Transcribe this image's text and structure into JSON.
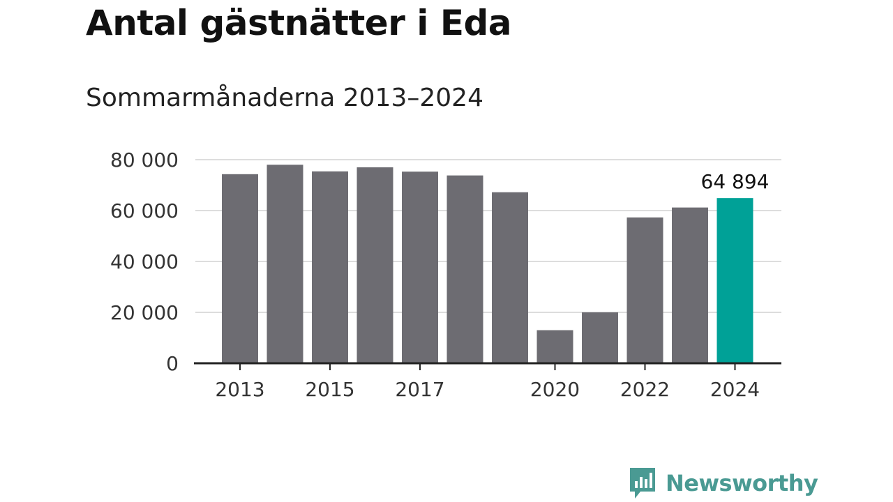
{
  "title": "Antal gästnätter i Eda",
  "subtitle": "Sommarmånaderna 2013–2024",
  "brand": {
    "name": "Newsworthy",
    "color": "#4a9a93",
    "icon": "newsworthy-logo-icon"
  },
  "colors": {
    "bar": "#6d6c72",
    "highlight": "#00a197",
    "grid": "#dddddd",
    "axis": "#222222"
  },
  "chart_data": {
    "type": "bar",
    "categories": [
      "2013",
      "2014",
      "2015",
      "2016",
      "2017",
      "2018",
      "2019",
      "2020",
      "2021",
      "2022",
      "2023",
      "2024"
    ],
    "values": [
      74300,
      78000,
      75400,
      77000,
      75300,
      73800,
      67200,
      13000,
      20000,
      57300,
      61200,
      64894
    ],
    "highlight_index": 11,
    "value_labels": [
      {
        "index": 11,
        "text": "64 894"
      }
    ],
    "xticks": [
      "2013",
      "2015",
      "2017",
      "2020",
      "2022",
      "2024"
    ],
    "yticks": [
      {
        "value": 0,
        "label": "0"
      },
      {
        "value": 20000,
        "label": "20 000"
      },
      {
        "value": 40000,
        "label": "40 000"
      },
      {
        "value": 60000,
        "label": "60 000"
      },
      {
        "value": 80000,
        "label": "80 000"
      }
    ],
    "ylim": [
      0,
      80000
    ],
    "grid": true,
    "legend": "none",
    "xlabel": "",
    "ylabel": ""
  }
}
